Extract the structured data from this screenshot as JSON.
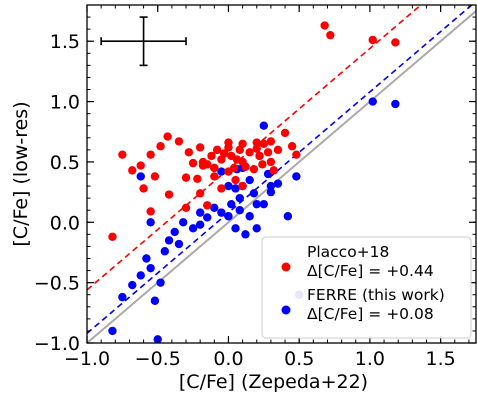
{
  "chart_data": {
    "type": "scatter",
    "xlabel": "[C/Fe] (Zepeda+22)",
    "ylabel": "[C/Fe] (low-res)",
    "xlim": [
      -1.0,
      1.75
    ],
    "ylim": [
      -1.0,
      1.8
    ],
    "xticks": [
      -1.0,
      -0.5,
      0.0,
      0.5,
      1.0,
      1.5
    ],
    "yticks": [
      -1.0,
      -0.5,
      0.0,
      0.5,
      1.0,
      1.5
    ],
    "x_tick_labels": [
      "−1.0",
      "−0.5",
      "0.0",
      "0.5",
      "1.0",
      "1.5"
    ],
    "y_tick_labels": [
      "−1.0",
      "−0.5",
      "0.0",
      "0.5",
      "1.0",
      "1.5"
    ],
    "grid": false,
    "legend_position": "bottom-right",
    "one_to_one_line": {
      "slope": 1,
      "intercept": 0,
      "color": "#aaaaaa"
    },
    "error_bar": {
      "x": -0.6,
      "y": 1.5,
      "xerr": 0.3,
      "yerr": 0.2,
      "color": "#000000"
    },
    "series": [
      {
        "legend_name": "Placco+18",
        "legend_offset": "Δ[C/Fe] = +0.44",
        "color": "#ff0000",
        "offset": 0.44,
        "points": [
          [
            -0.82,
            -0.12
          ],
          [
            -0.75,
            0.56
          ],
          [
            -0.68,
            0.43
          ],
          [
            -0.62,
            0.47
          ],
          [
            -0.6,
            0.28
          ],
          [
            -0.55,
            0.56
          ],
          [
            -0.52,
            0.38
          ],
          [
            -0.55,
            0.09
          ],
          [
            -0.48,
            0.63
          ],
          [
            -0.43,
            0.71
          ],
          [
            -0.42,
            0.23
          ],
          [
            -0.35,
            0.67
          ],
          [
            -0.28,
            0.58
          ],
          [
            -0.3,
            0.37
          ],
          [
            -0.25,
            0.49
          ],
          [
            -0.2,
            0.62
          ],
          [
            -0.18,
            0.5
          ],
          [
            -0.15,
            0.48
          ],
          [
            -0.12,
            0.55
          ],
          [
            -0.1,
            0.45
          ],
          [
            -0.08,
            0.6
          ],
          [
            -0.05,
            0.52
          ],
          [
            -0.03,
            0.57
          ],
          [
            0.0,
            0.62
          ],
          [
            0.02,
            0.55
          ],
          [
            0.04,
            0.45
          ],
          [
            0.06,
            0.52
          ],
          [
            0.08,
            0.6
          ],
          [
            0.1,
            0.5
          ],
          [
            0.12,
            0.46
          ],
          [
            0.15,
            0.58
          ],
          [
            0.18,
            0.44
          ],
          [
            0.2,
            0.61
          ],
          [
            0.22,
            0.55
          ],
          [
            0.24,
            0.48
          ],
          [
            0.25,
            0.65
          ],
          [
            0.28,
            0.58
          ],
          [
            0.3,
            0.5
          ],
          [
            0.32,
            0.43
          ],
          [
            0.35,
            0.6
          ],
          [
            0.4,
            0.74
          ],
          [
            0.45,
            0.63
          ],
          [
            0.48,
            0.56
          ],
          [
            -0.22,
            0.36
          ],
          [
            -0.2,
            0.24
          ],
          [
            -0.15,
            0.14
          ],
          [
            -0.1,
            0.38
          ],
          [
            -0.05,
            0.28
          ],
          [
            0.0,
            0.42
          ],
          [
            0.05,
            0.35
          ],
          [
            0.1,
            0.3
          ],
          [
            -0.3,
            0.12
          ],
          [
            -0.18,
            0.47
          ],
          [
            0.0,
            0.66
          ],
          [
            0.1,
            0.65
          ],
          [
            0.2,
            0.66
          ],
          [
            0.3,
            0.67
          ],
          [
            0.68,
            1.63
          ],
          [
            0.72,
            1.55
          ],
          [
            1.02,
            1.51
          ],
          [
            1.18,
            1.49
          ]
        ]
      },
      {
        "legend_name": "FERRE (this work)",
        "legend_offset": "Δ[C/Fe] = +0.08",
        "color": "#0000ff",
        "offset": 0.08,
        "points": [
          [
            -0.82,
            -0.9
          ],
          [
            -0.75,
            -0.62
          ],
          [
            -0.68,
            -0.52
          ],
          [
            -0.62,
            -0.44
          ],
          [
            -0.58,
            -0.3
          ],
          [
            -0.52,
            -0.65
          ],
          [
            -0.55,
            -0.38
          ],
          [
            -0.5,
            -0.97
          ],
          [
            -0.48,
            -0.5
          ],
          [
            -0.45,
            -0.24
          ],
          [
            -0.42,
            -0.15
          ],
          [
            -0.38,
            -0.08
          ],
          [
            -0.32,
            0.0
          ],
          [
            -0.25,
            -0.05
          ],
          [
            -0.2,
            0.08
          ],
          [
            -0.15,
            0.04
          ],
          [
            -0.1,
            0.12
          ],
          [
            -0.05,
            0.08
          ],
          [
            0.0,
            0.05
          ],
          [
            0.02,
            0.15
          ],
          [
            0.05,
            0.28
          ],
          [
            0.08,
            0.2
          ],
          [
            0.1,
            0.3
          ],
          [
            0.12,
            0.46
          ],
          [
            0.15,
            0.35
          ],
          [
            0.18,
            0.24
          ],
          [
            0.2,
            0.15
          ],
          [
            0.22,
            0.55
          ],
          [
            0.25,
            0.8
          ],
          [
            0.28,
            0.4
          ],
          [
            0.3,
            0.25
          ],
          [
            0.35,
            0.32
          ],
          [
            0.48,
            0.38
          ],
          [
            -0.62,
            0.38
          ],
          [
            -0.55,
            0.0
          ],
          [
            0.05,
            -0.05
          ],
          [
            0.08,
            0.1
          ],
          [
            0.12,
            -0.1
          ],
          [
            0.1,
            0.45
          ],
          [
            0.0,
            0.3
          ],
          [
            -0.05,
            0.42
          ],
          [
            0.15,
            0.05
          ],
          [
            0.2,
            -0.05
          ],
          [
            0.25,
            0.15
          ],
          [
            0.3,
            0.3
          ],
          [
            1.02,
            1.0
          ],
          [
            1.18,
            0.98
          ],
          [
            0.42,
            0.05
          ],
          [
            0.5,
            -0.6
          ],
          [
            -0.1,
            0.45
          ],
          [
            0.06,
            0.44
          ],
          [
            -0.2,
            -0.02
          ],
          [
            -0.35,
            -0.18
          ]
        ]
      }
    ]
  }
}
